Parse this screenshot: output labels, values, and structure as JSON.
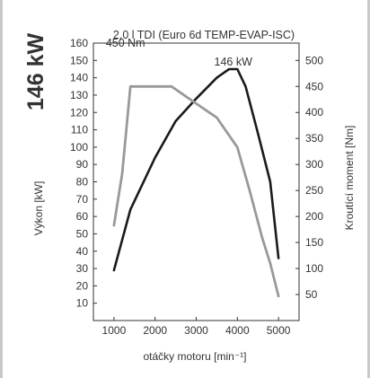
{
  "power_badge": "146 kW",
  "chart_data": {
    "type": "line",
    "title": "2,0 l TDI (Euro 6d TEMP-EVAP-ISC)",
    "xlabel": "otáčky motoru [min⁻¹]",
    "ylabel_left": "Výkon [kW]",
    "ylabel_right": "Kroutící moment [Nm]",
    "xlim": [
      500,
      5500
    ],
    "ylim_left": [
      0,
      160
    ],
    "ylim_right": [
      0,
      533.33
    ],
    "x_ticks": [
      1000,
      2000,
      3000,
      4000,
      5000
    ],
    "y_left_ticks": [
      10,
      20,
      30,
      40,
      50,
      60,
      70,
      80,
      90,
      100,
      110,
      120,
      130,
      140,
      150,
      160
    ],
    "y_right_ticks": [
      50,
      100,
      150,
      200,
      250,
      300,
      350,
      400,
      450,
      500
    ],
    "grid": false,
    "series": [
      {
        "axis": "left",
        "color": "#1a1a1a",
        "x": [
          1000,
          1400,
          2000,
          2500,
          3000,
          3500,
          3800,
          4000,
          4200,
          4500,
          4800,
          5000
        ],
        "values": [
          29,
          64,
          94,
          115,
          128,
          140,
          145,
          145,
          135,
          108,
          80,
          36
        ]
      },
      {
        "axis": "right",
        "color": "#999999",
        "x": [
          1000,
          1200,
          1400,
          1800,
          2400,
          3000,
          3500,
          4000,
          4300,
          4600,
          4800,
          5000
        ],
        "values": [
          183,
          283,
          450,
          450,
          450,
          417,
          390,
          333,
          250,
          160,
          110,
          47
        ]
      }
    ],
    "annotations": [
      {
        "text": "146 kW",
        "x": 3900,
        "y": 147,
        "axis": "left"
      },
      {
        "text": "450 Nm",
        "x": 1280,
        "y": 158,
        "axis": "left"
      }
    ]
  }
}
